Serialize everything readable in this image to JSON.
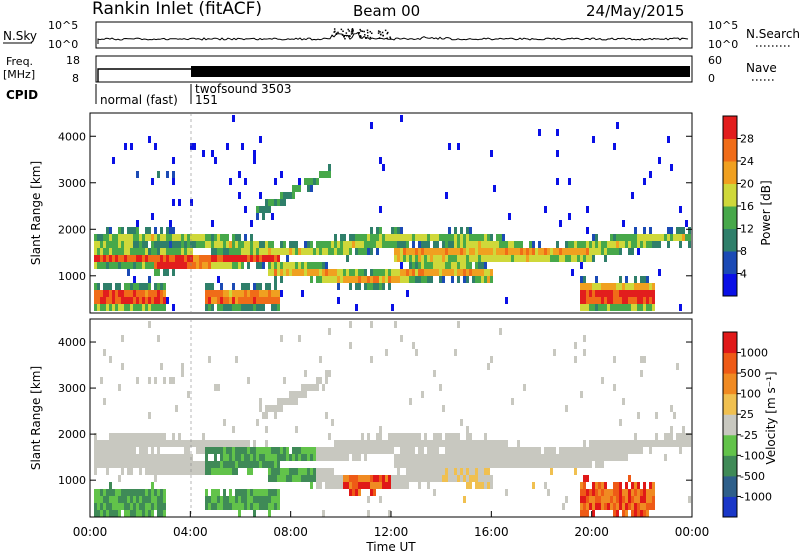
{
  "header": {
    "station": "Rankin Inlet (fitACF)",
    "beam": "Beam 00",
    "date": "24/May/2015"
  },
  "noise_panel": {
    "left_label": "N.Sky",
    "left_ticks": [
      "10^5",
      "10^0"
    ],
    "right_label": "N.Search",
    "right_ticks": [
      "10^5",
      "10^0"
    ]
  },
  "freq_panel": {
    "left_label_1": "Freq.",
    "left_label_2": "[MHz]",
    "left_ticks": [
      "18",
      "8"
    ],
    "right_label": "Nave",
    "right_ticks": [
      "60",
      "0"
    ]
  },
  "cpid": {
    "label": "CPID",
    "modes": [
      {
        "name": "normal (fast)",
        "id": "151"
      },
      {
        "name": "twofsound",
        "id": "3503"
      }
    ]
  },
  "chart_data": [
    {
      "type": "heatmap",
      "name": "power",
      "ylabel": "Slant Range [km]",
      "y_ticks": [
        "1000",
        "2000",
        "3000",
        "4000"
      ],
      "ylim": [
        200,
        4500
      ],
      "colorbar_label": "Power [dB]",
      "colorbar_ticks": [
        "4",
        "8",
        "12",
        "16",
        "20",
        "24",
        "28"
      ],
      "colorbar_colors": [
        "#0a10e6",
        "#1b4ab5",
        "#2f7f6a",
        "#47a84a",
        "#cfd83a",
        "#f0a020",
        "#f06c18",
        "#e21d1d"
      ]
    },
    {
      "type": "heatmap",
      "name": "velocity",
      "ylabel": "Slant Range [km]",
      "y_ticks": [
        "1000",
        "2000",
        "3000",
        "4000"
      ],
      "ylim": [
        200,
        4500
      ],
      "xlabel": "Time UT",
      "x_ticks": [
        "00:00",
        "04:00",
        "08:00",
        "12:00",
        "16:00",
        "20:00",
        "00:00"
      ],
      "colorbar_label": "Velocity [m s⁻¹]",
      "colorbar_ticks": [
        "1000",
        "500",
        "100",
        "25",
        "-25",
        "-100",
        "-500",
        "-1000"
      ],
      "colorbar_colors": [
        "#1a37c8",
        "#2e5f8a",
        "#3f8a57",
        "#62c34a",
        "#c8c8c0",
        "#f0c050",
        "#f08a22",
        "#ee5a16",
        "#e01818"
      ]
    }
  ]
}
